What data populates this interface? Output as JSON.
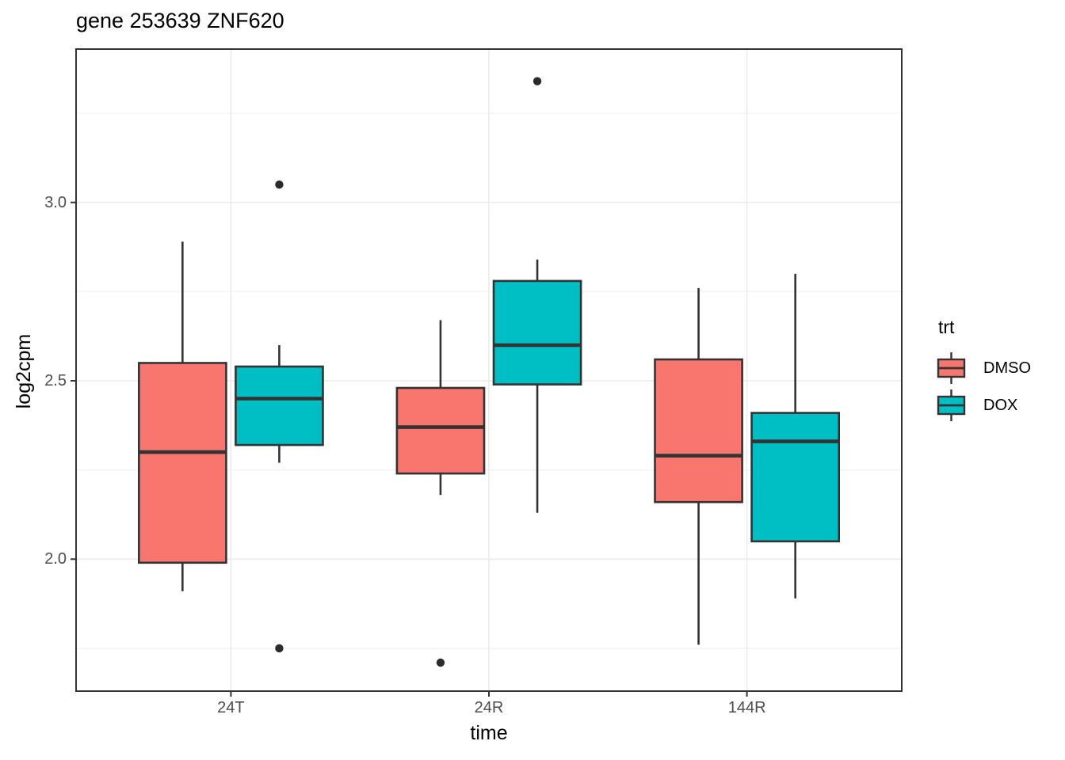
{
  "title": "gene 253639 ZNF620",
  "chart_data": {
    "type": "boxplot",
    "title": "gene 253639 ZNF620",
    "xlabel": "time",
    "ylabel": "log2cpm",
    "categories": [
      "24T",
      "24R",
      "144R"
    ],
    "ylim": [
      1.63,
      3.43
    ],
    "y_ticks": [
      {
        "value": 2.0,
        "label": "2.0"
      },
      {
        "value": 2.5,
        "label": "2.5"
      },
      {
        "value": 3.0,
        "label": "3.0"
      }
    ],
    "y_minor_ticks": [
      1.75,
      2.25,
      2.75,
      3.25
    ],
    "grid": true,
    "legend": {
      "title": "trt",
      "position": "right"
    },
    "series": [
      {
        "name": "DMSO",
        "color": "#F8766D",
        "boxes": [
          {
            "category": "24T",
            "whisker_low": 1.91,
            "q1": 1.99,
            "median": 2.3,
            "q3": 2.55,
            "whisker_high": 2.89,
            "outliers": []
          },
          {
            "category": "24R",
            "whisker_low": 2.18,
            "q1": 2.24,
            "median": 2.37,
            "q3": 2.48,
            "whisker_high": 2.67,
            "outliers": [
              1.71
            ]
          },
          {
            "category": "144R",
            "whisker_low": 1.76,
            "q1": 2.16,
            "median": 2.29,
            "q3": 2.56,
            "whisker_high": 2.76,
            "outliers": []
          }
        ]
      },
      {
        "name": "DOX",
        "color": "#00BFC4",
        "boxes": [
          {
            "category": "24T",
            "whisker_low": 2.27,
            "q1": 2.32,
            "median": 2.45,
            "q3": 2.54,
            "whisker_high": 2.6,
            "outliers": [
              3.05,
              1.75
            ]
          },
          {
            "category": "24R",
            "whisker_low": 2.13,
            "q1": 2.49,
            "median": 2.6,
            "q3": 2.78,
            "whisker_high": 2.84,
            "outliers": [
              3.34
            ]
          },
          {
            "category": "144R",
            "whisker_low": 1.89,
            "q1": 2.05,
            "median": 2.33,
            "q3": 2.41,
            "whisker_high": 2.8,
            "outliers": []
          }
        ]
      }
    ],
    "style": {
      "box_outline": "#333333",
      "median_color": "#333333",
      "outlier_color": "#2B2B2B",
      "grid_major": "#EBEBEB",
      "grid_minor": "#F3F3F3",
      "panel_border": "#333333",
      "tick_color": "#333333",
      "tick_label_color": "#4D4D4D",
      "background": "#FFFFFF"
    }
  }
}
